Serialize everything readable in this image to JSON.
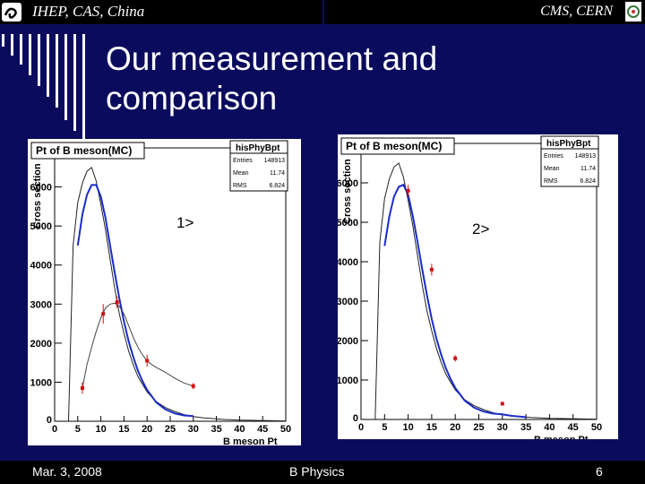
{
  "header": {
    "left_institution": "IHEP, CAS, China",
    "right_institution": "CMS, CERN"
  },
  "slide": {
    "title": "Our measurement and comparison"
  },
  "footer": {
    "date": "Mar. 3, 2008",
    "topic": "B Physics",
    "page": "6"
  },
  "colors": {
    "background": "#0b0b5e",
    "fit_line": "#1a2cc8",
    "data_points": "#d01010"
  },
  "chart_data": [
    {
      "type": "line",
      "label": "1>",
      "title": "Pt of B meson(MC)",
      "xlabel": "B meson Pt",
      "ylabel": "Cross section",
      "xlim": [
        0,
        50
      ],
      "ylim": [
        0,
        7000
      ],
      "x_ticks": [
        0,
        5,
        10,
        15,
        20,
        25,
        30,
        35,
        40,
        45,
        50
      ],
      "y_ticks": [
        1000,
        2000,
        3000,
        4000,
        5000,
        6000
      ],
      "stats": {
        "name": "hisPhyBpt",
        "entries": "148913",
        "mean": "11.74",
        "rms": "6.824"
      },
      "series": [
        {
          "name": "MC histogram",
          "x": [
            3,
            4,
            5,
            6,
            7,
            8,
            9,
            10,
            11,
            12,
            13,
            14,
            15,
            16,
            17,
            18,
            19,
            20,
            22,
            24,
            26,
            28,
            30,
            32,
            34,
            36,
            38,
            40,
            42,
            44,
            46,
            48,
            50
          ],
          "values": [
            0,
            4500,
            5600,
            6100,
            6400,
            6500,
            6150,
            5550,
            4900,
            4150,
            3400,
            2750,
            2250,
            1800,
            1450,
            1150,
            950,
            750,
            500,
            350,
            250,
            170,
            120,
            90,
            70,
            50,
            40,
            30,
            25,
            20,
            15,
            12,
            10
          ]
        },
        {
          "name": "fit",
          "x": [
            5,
            6,
            7,
            8,
            9,
            10,
            11,
            12,
            13,
            14,
            15,
            16,
            17,
            18,
            19,
            20,
            22,
            24,
            26,
            28,
            30
          ],
          "values": [
            4500,
            5300,
            5800,
            6050,
            6050,
            5750,
            5200,
            4500,
            3800,
            3150,
            2550,
            2050,
            1650,
            1300,
            1030,
            800,
            480,
            300,
            200,
            150,
            130
          ]
        },
        {
          "name": "measured",
          "x": [
            6,
            10.5,
            13.5,
            20,
            30
          ],
          "values": [
            850,
            2750,
            3050,
            1550,
            900
          ],
          "errors": [
            150,
            250,
            150,
            150,
            80
          ]
        },
        {
          "name": "curve through measured",
          "x": [
            6,
            7,
            8,
            9,
            10,
            11,
            12,
            13,
            14,
            15,
            16,
            17,
            18,
            19,
            20,
            21,
            22,
            24,
            26,
            28,
            30
          ],
          "values": [
            850,
            1450,
            1900,
            2300,
            2650,
            2900,
            3000,
            3020,
            2950,
            2750,
            2450,
            2150,
            1900,
            1700,
            1550,
            1450,
            1380,
            1250,
            1100,
            980,
            900
          ]
        }
      ]
    },
    {
      "type": "line",
      "label": "2>",
      "title": "Pt of B meson(MC)",
      "xlabel": "B meson Pt",
      "ylabel": "Cross section",
      "xlim": [
        0,
        50
      ],
      "ylim": [
        0,
        7000
      ],
      "x_ticks": [
        0,
        5,
        10,
        15,
        20,
        25,
        30,
        35,
        40,
        45,
        50
      ],
      "y_ticks": [
        1000,
        2000,
        3000,
        4000,
        5000,
        6000
      ],
      "stats": {
        "name": "hisPhyBpt",
        "entries": "148913",
        "mean": "11.74",
        "rms": "6.824"
      },
      "series": [
        {
          "name": "MC histogram",
          "x": [
            3,
            4,
            5,
            6,
            7,
            8,
            9,
            10,
            11,
            12,
            13,
            14,
            15,
            16,
            17,
            18,
            19,
            20,
            22,
            24,
            26,
            28,
            30,
            32,
            34,
            36,
            38,
            40,
            42,
            44,
            46,
            48,
            50
          ],
          "values": [
            0,
            4500,
            5600,
            6100,
            6400,
            6500,
            6150,
            5550,
            4900,
            4150,
            3400,
            2750,
            2250,
            1800,
            1450,
            1150,
            950,
            750,
            500,
            350,
            250,
            170,
            120,
            90,
            70,
            50,
            40,
            30,
            25,
            20,
            15,
            12,
            10
          ]
        },
        {
          "name": "fit",
          "x": [
            5,
            6,
            7,
            8,
            9,
            10,
            11,
            12,
            13,
            14,
            15,
            16,
            17,
            18,
            19,
            20,
            22,
            24,
            26,
            28,
            30,
            32,
            35
          ],
          "values": [
            4400,
            5150,
            5650,
            5900,
            5950,
            5700,
            5150,
            4500,
            3800,
            3150,
            2550,
            2050,
            1650,
            1300,
            1030,
            800,
            480,
            300,
            200,
            150,
            130,
            90,
            60
          ]
        },
        {
          "name": "measured",
          "x": [
            10,
            15,
            20,
            30
          ],
          "values": [
            5800,
            3800,
            1550,
            400
          ],
          "errors": [
            150,
            150,
            80,
            40
          ]
        }
      ]
    }
  ]
}
